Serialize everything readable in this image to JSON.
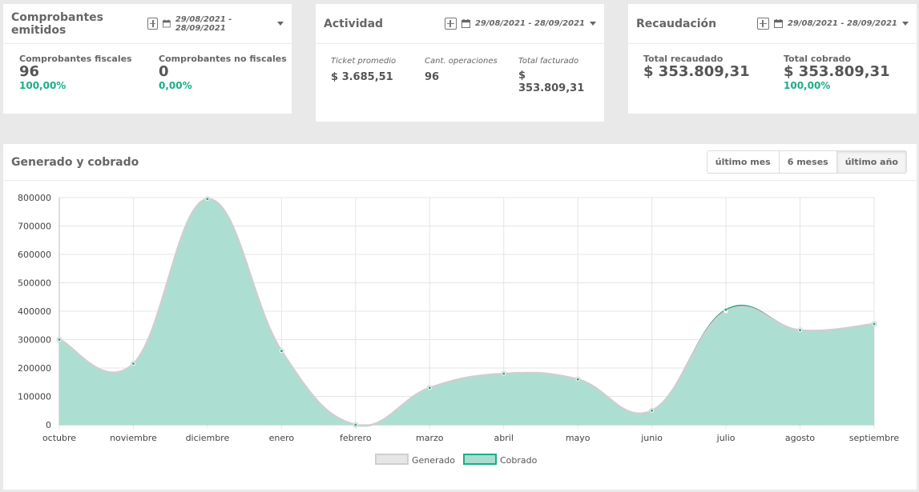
{
  "cards": {
    "comprobantes": {
      "title": "Comprobantes emitidos",
      "date_range": "29/08/2021 - 28/09/2021",
      "fiscales_label": "Comprobantes fiscales",
      "fiscales_value": "96",
      "fiscales_pct": "100,00%",
      "no_fiscales_label": "Comprobantes no fiscales",
      "no_fiscales_value": "0",
      "no_fiscales_pct": "0,00%"
    },
    "actividad": {
      "title": "Actividad",
      "date_range": "29/08/2021 - 28/09/2021",
      "ticket_label": "Ticket promedio",
      "ticket_value": "$ 3.685,51",
      "ops_label": "Cant. operaciones",
      "ops_value": "96",
      "facturado_label": "Total facturado",
      "facturado_value_1": "$",
      "facturado_value_2": "353.809,31"
    },
    "recaudacion": {
      "title": "Recaudación",
      "date_range": "29/08/2021 - 28/09/2021",
      "recaudado_label": "Total recaudado",
      "recaudado_value": "$ 353.809,31",
      "cobrado_label": "Total cobrado",
      "cobrado_value": "$ 353.809,31",
      "cobrado_pct": "100,00%"
    }
  },
  "chart_panel": {
    "title": "Generado y cobrado",
    "buttons": [
      "último mes",
      "6 meses",
      "último año"
    ],
    "active_button": "último año"
  },
  "colors": {
    "generado_fill": "#e6e6e6",
    "generado_line": "#cfcfcf",
    "cobrado_fill": "#a8ddd0",
    "cobrado_line": "#1aad87",
    "accent": "#1aad87"
  },
  "icons": [
    "plus-icon",
    "calendar-icon",
    "caret-down-icon"
  ],
  "chart_data": {
    "type": "area",
    "categories": [
      "octubre",
      "noviembre",
      "diciembre",
      "enero",
      "febrero",
      "marzo",
      "abril",
      "mayo",
      "junio",
      "julio",
      "agosto",
      "septiembre"
    ],
    "series": [
      {
        "name": "Generado",
        "values": [
          300000,
          215000,
          795000,
          260000,
          0,
          130000,
          180000,
          160000,
          50000,
          400000,
          333000,
          355000
        ]
      },
      {
        "name": "Cobrado",
        "values": [
          300000,
          215000,
          795000,
          260000,
          0,
          130000,
          180000,
          160000,
          50000,
          405000,
          333000,
          355000
        ]
      }
    ],
    "yticks": [
      "0",
      "100000",
      "200000",
      "300000",
      "400000",
      "500000",
      "600000",
      "700000",
      "800000"
    ],
    "ylim": [
      0,
      800000
    ],
    "grid": true,
    "legend": "bottom"
  }
}
